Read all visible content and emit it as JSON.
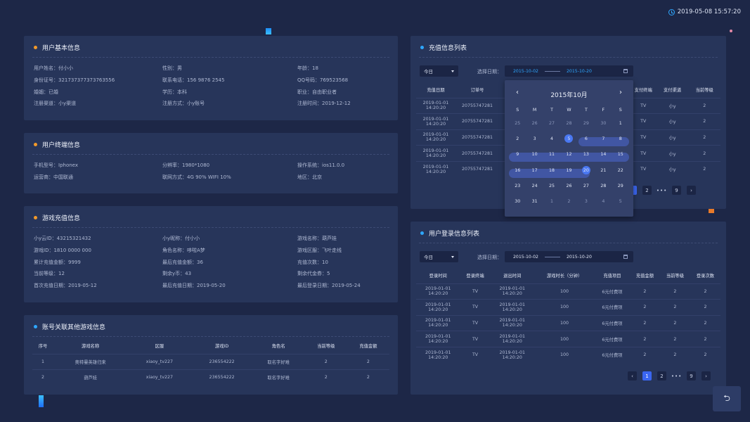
{
  "datetime": "2019-05-08 15:57:20",
  "colors": {
    "bg": "#1d2747",
    "card": "#27355a",
    "orange": "#f39a2a",
    "blue": "#2ea7ff",
    "accent": "#3a66f0"
  },
  "basic": {
    "title": "用户基本信息",
    "rows": [
      [
        "用户姓名：付小小",
        "性别：男",
        "年龄：18"
      ],
      [
        "身份证号：321737377373763556",
        "联系电话：156 9876 2545",
        "QQ号码：769523568"
      ],
      [
        "婚姻：已婚",
        "学历：本科",
        "职业：自由职业者"
      ],
      [
        "注册渠道：小y渠道",
        "注册方式：小y账号",
        "注册时间：2019-12-12"
      ]
    ]
  },
  "terminal": {
    "title": "用户终端信息",
    "rows": [
      [
        "手机型号：Iphonex",
        "分辨率：1980*1080",
        "操作系统：ios11.0.0"
      ],
      [
        "运营商：中国联通",
        "联网方式：4G 90%  WIFI 10%",
        "地区：北京"
      ]
    ]
  },
  "recharge": {
    "title": "游戏充值信息",
    "rows": [
      [
        "小y云ID：43215321432",
        "小y昵称：付小小",
        "游戏名称：葫芦娃"
      ],
      [
        "游戏ID：1810 0000 000",
        "角色名称：哆啦A梦",
        "游戏区服：飞叶走线"
      ],
      [
        "累计充值金额：9999",
        "最后充值金额：36",
        "充值次数：10"
      ],
      [
        "当前等级：12",
        "剩余y币：43",
        "剩余代金券：5"
      ],
      [
        "首次充值日期：2019-05-12",
        "最后充值日期：2019-05-20",
        "最后登录日期：2019-05-24"
      ]
    ]
  },
  "linked": {
    "title": "账号关联其他游戏信息",
    "headers": [
      "序号",
      "游戏名称",
      "区服",
      "游戏ID",
      "角色名",
      "当前等级",
      "充值金额"
    ],
    "rows": [
      [
        "1",
        "奥特曼英雄归来",
        "xiaoy_tv227",
        "236554222",
        "取名字好难",
        "2",
        "2"
      ],
      [
        "2",
        "葫芦娃",
        "xiaoy_tv227",
        "236554222",
        "取名字好难",
        "2",
        "2"
      ]
    ]
  },
  "rlist": {
    "title": "充值信息列表",
    "select": "今日",
    "date_label": "选择日期：",
    "date_from": "2015-10-02",
    "date_to": "2015-10-20",
    "headers": [
      "充值日期",
      "订单号",
      "支付终端",
      "支付渠道",
      "当前等级"
    ],
    "rows": [
      [
        "2019-01-01",
        "14:20:20",
        "20755747281",
        "TV",
        "小y",
        "2"
      ],
      [
        "2019-01-01",
        "14:20:20",
        "20755747281",
        "TV",
        "小y",
        "2"
      ],
      [
        "2019-01-01",
        "14:20:20",
        "20755747281",
        "TV",
        "小y",
        "2"
      ],
      [
        "2019-01-01",
        "14:20:20",
        "20755747281",
        "TV",
        "小y",
        "2"
      ],
      [
        "2019-01-01",
        "14:20:20",
        "20755747281",
        "TV",
        "小y",
        "2"
      ]
    ],
    "pager": {
      "current": "1",
      "next": "2",
      "dots": "•••",
      "last": "9"
    }
  },
  "calendar": {
    "month": "2015年10月",
    "weekdays": [
      "S",
      "M",
      "T",
      "W",
      "T",
      "F",
      "S"
    ],
    "days": [
      "25",
      "26",
      "27",
      "28",
      "29",
      "30",
      "1",
      "2",
      "3",
      "4",
      "5",
      "6",
      "7",
      "8",
      "9",
      "10",
      "11",
      "12",
      "13",
      "14",
      "15",
      "16",
      "17",
      "18",
      "19",
      "20",
      "21",
      "22",
      "23",
      "24",
      "25",
      "26",
      "27",
      "28",
      "29",
      "30",
      "31",
      "1",
      "2",
      "3",
      "4",
      "5"
    ]
  },
  "llist": {
    "title": "用户登录信息列表",
    "select": "今日",
    "date_label": "选择日期：",
    "date_from": "2015-10-02",
    "date_to": "2015-10-20",
    "headers": [
      "登录时间",
      "登录终端",
      "退出时间",
      "游戏时长（分钟）",
      "充值项目",
      "充值金额",
      "当前等级",
      "登录次数"
    ],
    "rows": [
      [
        "2019-01-01",
        "14:20:20",
        "TV",
        "2019-01-01",
        "14:20:20",
        "100",
        "6元付费项",
        "2",
        "2",
        "2"
      ],
      [
        "2019-01-01",
        "14:20:20",
        "TV",
        "2019-01-01",
        "14:20:20",
        "100",
        "6元付费项",
        "2",
        "2",
        "2"
      ],
      [
        "2019-01-01",
        "14:20:20",
        "TV",
        "2019-01-01",
        "14:20:20",
        "100",
        "6元付费项",
        "2",
        "2",
        "2"
      ],
      [
        "2019-01-01",
        "14:20:20",
        "TV",
        "2019-01-01",
        "14:20:20",
        "100",
        "6元付费项",
        "2",
        "2",
        "2"
      ],
      [
        "2019-01-01",
        "14:20:20",
        "TV",
        "2019-01-01",
        "14:20:20",
        "100",
        "6元付费项",
        "2",
        "2",
        "2"
      ]
    ],
    "pager": {
      "current": "1",
      "next": "2",
      "dots": "•••",
      "last": "9"
    }
  },
  "back_icon": "back-arrow-icon"
}
